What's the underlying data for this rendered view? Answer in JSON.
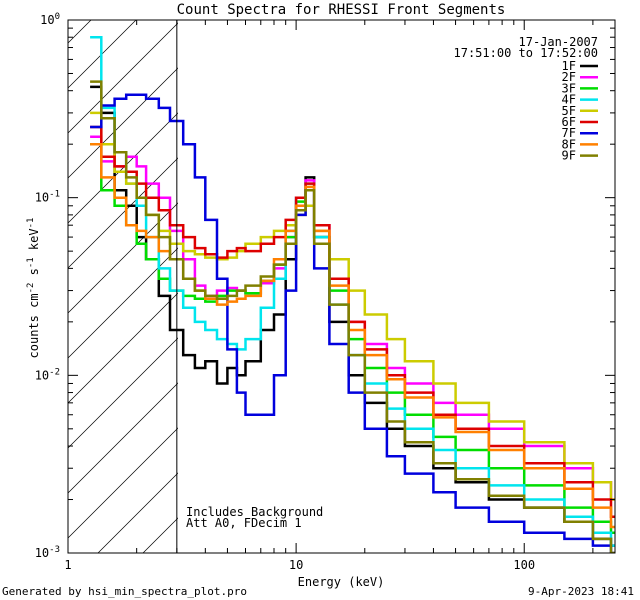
{
  "chart_data": {
    "type": "line",
    "title": "Count Spectra for RHESSI Front Segments",
    "xlabel": "Energy (keV)",
    "ylabel_parts": {
      "a": "counts cm",
      "b": "-2",
      "c": " s",
      "d": "-1",
      "e": " keV",
      "f": "-1"
    },
    "x_scale": "log",
    "y_scale": "log",
    "xlim": [
      1,
      250
    ],
    "ylim": [
      0.001,
      1
    ],
    "x_ticks": [
      {
        "v": 1,
        "label": "1"
      },
      {
        "v": 10,
        "label": "10"
      },
      {
        "v": 100,
        "label": "100"
      }
    ],
    "y_ticks": [
      {
        "v": 1,
        "m": "10",
        "e": "0"
      },
      {
        "v": 0.1,
        "m": "10",
        "e": "-1"
      },
      {
        "v": 0.01,
        "m": "10",
        "e": "-2"
      },
      {
        "v": 0.001,
        "m": "10",
        "e": "-3"
      }
    ],
    "hatch_xmax": 3,
    "date": "17-Jan-2007",
    "time_range": "17:51:00 to 17:52:00",
    "annotation_lines": [
      "Includes Background",
      "Att A0, FDecim 1"
    ],
    "footer_left": "Generated by hsi_min_spectra_plot.pro",
    "footer_right": "9-Apr-2023 18:41",
    "series": [
      {
        "name": "1F",
        "color": "#000000",
        "x": [
          1.25,
          1.4,
          1.6,
          1.8,
          2.0,
          2.2,
          2.5,
          2.8,
          3.2,
          3.6,
          4,
          4.5,
          5,
          5.5,
          6,
          7,
          8,
          9,
          10,
          11,
          12,
          14,
          17,
          20,
          25,
          30,
          40,
          50,
          70,
          100,
          150,
          200,
          240
        ],
        "y": [
          0.42,
          0.3,
          0.11,
          0.09,
          0.06,
          0.045,
          0.028,
          0.018,
          0.013,
          0.011,
          0.012,
          0.009,
          0.011,
          0.01,
          0.012,
          0.018,
          0.022,
          0.045,
          0.09,
          0.13,
          0.06,
          0.02,
          0.01,
          0.007,
          0.005,
          0.004,
          0.003,
          0.0025,
          0.002,
          0.0018,
          0.0015,
          0.0012,
          0.0011
        ]
      },
      {
        "name": "2F",
        "color": "#ff00ff",
        "x": [
          1.25,
          1.4,
          1.6,
          1.8,
          2.0,
          2.2,
          2.5,
          2.8,
          3.2,
          3.6,
          4,
          4.5,
          5,
          5.5,
          6,
          7,
          8,
          9,
          10,
          11,
          12,
          14,
          17,
          20,
          25,
          30,
          40,
          50,
          70,
          100,
          150,
          200,
          240
        ],
        "y": [
          0.22,
          0.16,
          0.15,
          0.17,
          0.15,
          0.12,
          0.1,
          0.065,
          0.045,
          0.032,
          0.028,
          0.03,
          0.031,
          0.03,
          0.029,
          0.033,
          0.04,
          0.06,
          0.1,
          0.125,
          0.07,
          0.035,
          0.02,
          0.015,
          0.011,
          0.009,
          0.007,
          0.006,
          0.005,
          0.004,
          0.003,
          0.0025,
          0.002
        ]
      },
      {
        "name": "3F",
        "color": "#00dd00",
        "x": [
          1.25,
          1.4,
          1.6,
          1.8,
          2.0,
          2.2,
          2.5,
          2.8,
          3.2,
          3.6,
          4,
          4.5,
          5,
          5.5,
          6,
          7,
          8,
          9,
          10,
          11,
          12,
          14,
          17,
          20,
          25,
          30,
          40,
          50,
          70,
          100,
          150,
          200,
          240
        ],
        "y": [
          0.2,
          0.11,
          0.09,
          0.07,
          0.055,
          0.045,
          0.035,
          0.03,
          0.028,
          0.027,
          0.026,
          0.028,
          0.03,
          0.03,
          0.029,
          0.034,
          0.042,
          0.06,
          0.095,
          0.11,
          0.06,
          0.03,
          0.016,
          0.011,
          0.008,
          0.006,
          0.0045,
          0.0038,
          0.003,
          0.0024,
          0.0018,
          0.0015,
          0.0013
        ]
      },
      {
        "name": "4F",
        "color": "#00e5ee",
        "x": [
          1.25,
          1.4,
          1.6,
          1.8,
          2.0,
          2.2,
          2.5,
          2.8,
          3.2,
          3.6,
          4,
          4.5,
          5,
          5.5,
          6,
          7,
          8,
          9,
          10,
          11,
          12,
          14,
          17,
          20,
          25,
          30,
          40,
          50,
          70,
          100,
          150,
          200,
          240
        ],
        "y": [
          0.8,
          0.32,
          0.18,
          0.12,
          0.09,
          0.06,
          0.04,
          0.03,
          0.024,
          0.02,
          0.018,
          0.016,
          0.015,
          0.014,
          0.016,
          0.024,
          0.035,
          0.065,
          0.1,
          0.12,
          0.06,
          0.025,
          0.013,
          0.009,
          0.0065,
          0.005,
          0.0038,
          0.003,
          0.0024,
          0.002,
          0.0016,
          0.0013,
          0.0011
        ]
      },
      {
        "name": "5F",
        "color": "#cccc00",
        "x": [
          1.25,
          1.4,
          1.6,
          1.8,
          2.0,
          2.2,
          2.5,
          2.8,
          3.2,
          3.6,
          4,
          4.5,
          5,
          5.5,
          6,
          7,
          8,
          9,
          10,
          11,
          12,
          14,
          17,
          20,
          25,
          30,
          40,
          50,
          70,
          100,
          150,
          200,
          240
        ],
        "y": [
          0.3,
          0.2,
          0.14,
          0.12,
          0.1,
          0.08,
          0.065,
          0.055,
          0.05,
          0.048,
          0.046,
          0.045,
          0.046,
          0.05,
          0.055,
          0.06,
          0.065,
          0.07,
          0.08,
          0.09,
          0.065,
          0.045,
          0.03,
          0.022,
          0.016,
          0.012,
          0.009,
          0.007,
          0.0055,
          0.0042,
          0.0032,
          0.0025,
          0.002
        ]
      },
      {
        "name": "6F",
        "color": "#dd0000",
        "x": [
          1.25,
          1.4,
          1.6,
          1.8,
          2.0,
          2.2,
          2.5,
          2.8,
          3.2,
          3.6,
          4,
          4.5,
          5,
          5.5,
          6,
          7,
          8,
          9,
          10,
          11,
          12,
          14,
          17,
          20,
          25,
          30,
          40,
          50,
          70,
          100,
          150,
          200,
          240
        ],
        "y": [
          0.25,
          0.17,
          0.15,
          0.14,
          0.12,
          0.1,
          0.085,
          0.07,
          0.06,
          0.052,
          0.048,
          0.046,
          0.05,
          0.052,
          0.05,
          0.055,
          0.06,
          0.075,
          0.1,
          0.12,
          0.07,
          0.035,
          0.02,
          0.014,
          0.01,
          0.008,
          0.006,
          0.005,
          0.004,
          0.0032,
          0.0025,
          0.002,
          0.0016
        ]
      },
      {
        "name": "7F",
        "color": "#0000dd",
        "x": [
          1.25,
          1.4,
          1.6,
          1.8,
          2.0,
          2.2,
          2.5,
          2.8,
          3.2,
          3.6,
          4,
          4.5,
          5,
          5.5,
          6,
          7,
          8,
          9,
          10,
          11,
          12,
          14,
          17,
          20,
          25,
          30,
          40,
          50,
          70,
          100,
          150,
          200,
          240
        ],
        "y": [
          0.25,
          0.33,
          0.36,
          0.38,
          0.38,
          0.36,
          0.32,
          0.27,
          0.2,
          0.13,
          0.075,
          0.035,
          0.014,
          0.008,
          0.006,
          0.006,
          0.01,
          0.03,
          0.08,
          0.11,
          0.04,
          0.015,
          0.008,
          0.005,
          0.0035,
          0.0028,
          0.0022,
          0.0018,
          0.0015,
          0.0013,
          0.0012,
          0.0011,
          0.001
        ]
      },
      {
        "name": "8F",
        "color": "#ff8000",
        "x": [
          1.25,
          1.4,
          1.6,
          1.8,
          2.0,
          2.2,
          2.5,
          2.8,
          3.2,
          3.6,
          4,
          4.5,
          5,
          5.5,
          6,
          7,
          8,
          9,
          10,
          11,
          12,
          14,
          17,
          20,
          25,
          30,
          40,
          50,
          70,
          100,
          150,
          200,
          240
        ],
        "y": [
          0.2,
          0.13,
          0.1,
          0.07,
          0.065,
          0.06,
          0.05,
          0.045,
          0.035,
          0.03,
          0.027,
          0.025,
          0.026,
          0.027,
          0.028,
          0.034,
          0.045,
          0.065,
          0.09,
          0.115,
          0.065,
          0.032,
          0.018,
          0.013,
          0.0095,
          0.0075,
          0.0058,
          0.0048,
          0.0038,
          0.003,
          0.0023,
          0.0018,
          0.0014
        ]
      },
      {
        "name": "9F",
        "color": "#808000",
        "x": [
          1.25,
          1.4,
          1.6,
          1.8,
          2.0,
          2.2,
          2.5,
          2.8,
          3.2,
          3.6,
          4,
          4.5,
          5,
          5.5,
          6,
          7,
          8,
          9,
          10,
          11,
          12,
          14,
          17,
          20,
          25,
          30,
          40,
          50,
          70,
          100,
          150,
          200,
          240
        ],
        "y": [
          0.45,
          0.28,
          0.18,
          0.13,
          0.1,
          0.08,
          0.06,
          0.045,
          0.035,
          0.03,
          0.028,
          0.027,
          0.028,
          0.03,
          0.032,
          0.036,
          0.042,
          0.055,
          0.085,
          0.11,
          0.055,
          0.025,
          0.013,
          0.008,
          0.0055,
          0.0042,
          0.0032,
          0.0026,
          0.0021,
          0.0018,
          0.0015,
          0.0012,
          0.001
        ]
      }
    ]
  }
}
